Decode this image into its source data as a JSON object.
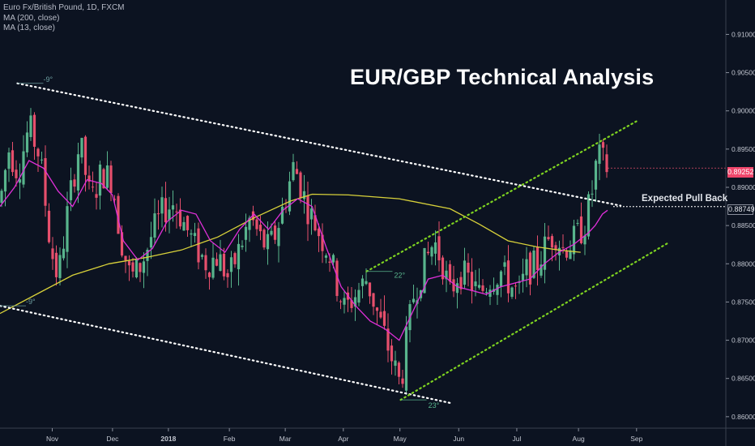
{
  "legend": {
    "symbol": "Euro Fx/British Pound, 1D, FXCM",
    "ma1": "MA (200, close)",
    "ma2": "MA (13, close)"
  },
  "annotations": {
    "title": "EUR/GBP Technical Analysis",
    "pullback": "Expected Pull Back",
    "angles": [
      "-9°",
      "-9°",
      "22°",
      "23°"
    ]
  },
  "price_tags": {
    "last": "0.89252",
    "pullback_level": "0.88749"
  },
  "colors": {
    "background": "#0c1321",
    "up_candle": "#58b48c",
    "down_candle": "#e64f6c",
    "ma200": "#d8d13a",
    "ma13": "#e02fd9",
    "channel_down": "#ffffff",
    "channel_up": "#7ed321"
  },
  "chart_data": {
    "type": "candlestick",
    "title": "EUR/GBP Technical Analysis",
    "instrument": "Euro Fx/British Pound, 1D, FXCM",
    "x_ticks": [
      "Nov",
      "Dec",
      "2018",
      "Feb",
      "Mar",
      "Apr",
      "May",
      "Jun",
      "Jul",
      "Aug",
      "Sep"
    ],
    "y_ticks": [
      "0.91000",
      "0.90500",
      "0.90000",
      "0.89500",
      "0.89000",
      "0.88500",
      "0.88000",
      "0.87500",
      "0.87000",
      "0.86500",
      "0.86000"
    ],
    "ylim": [
      0.8585,
      0.9145
    ],
    "ticks_x_pos": [
      0.072,
      0.155,
      0.232,
      0.316,
      0.393,
      0.473,
      0.551,
      0.632,
      0.712,
      0.797,
      0.877
    ],
    "last_price": 0.89252,
    "pullback_level": 0.88749,
    "series": [
      {
        "name": "MA (200, close)",
        "points": [
          [
            0.0,
            0.8735
          ],
          [
            0.05,
            0.876
          ],
          [
            0.1,
            0.8785
          ],
          [
            0.15,
            0.88
          ],
          [
            0.2,
            0.8808
          ],
          [
            0.25,
            0.8818
          ],
          [
            0.3,
            0.8835
          ],
          [
            0.35,
            0.886
          ],
          [
            0.4,
            0.8882
          ],
          [
            0.43,
            0.8891
          ],
          [
            0.48,
            0.889
          ],
          [
            0.55,
            0.8885
          ],
          [
            0.62,
            0.8872
          ],
          [
            0.66,
            0.8852
          ],
          [
            0.7,
            0.883
          ],
          [
            0.74,
            0.8822
          ],
          [
            0.77,
            0.8818
          ],
          [
            0.8,
            0.8815
          ]
        ]
      },
      {
        "name": "MA (13, close)",
        "points": [
          [
            0.0,
            0.8875
          ],
          [
            0.02,
            0.89
          ],
          [
            0.04,
            0.8935
          ],
          [
            0.06,
            0.8925
          ],
          [
            0.08,
            0.8895
          ],
          [
            0.1,
            0.8875
          ],
          [
            0.12,
            0.891
          ],
          [
            0.14,
            0.8905
          ],
          [
            0.155,
            0.889
          ],
          [
            0.17,
            0.883
          ],
          [
            0.19,
            0.8805
          ],
          [
            0.21,
            0.882
          ],
          [
            0.23,
            0.8855
          ],
          [
            0.25,
            0.887
          ],
          [
            0.27,
            0.8865
          ],
          [
            0.29,
            0.883
          ],
          [
            0.31,
            0.8815
          ],
          [
            0.33,
            0.8845
          ],
          [
            0.35,
            0.8865
          ],
          [
            0.37,
            0.8845
          ],
          [
            0.39,
            0.887
          ],
          [
            0.41,
            0.8885
          ],
          [
            0.43,
            0.8875
          ],
          [
            0.45,
            0.882
          ],
          [
            0.47,
            0.877
          ],
          [
            0.49,
            0.8745
          ],
          [
            0.51,
            0.8725
          ],
          [
            0.53,
            0.8715
          ],
          [
            0.55,
            0.87
          ],
          [
            0.57,
            0.874
          ],
          [
            0.59,
            0.878
          ],
          [
            0.61,
            0.8785
          ],
          [
            0.63,
            0.877
          ],
          [
            0.65,
            0.8765
          ],
          [
            0.67,
            0.876
          ],
          [
            0.69,
            0.877
          ],
          [
            0.71,
            0.8775
          ],
          [
            0.73,
            0.878
          ],
          [
            0.75,
            0.88
          ],
          [
            0.77,
            0.8815
          ],
          [
            0.79,
            0.8825
          ],
          [
            0.81,
            0.884
          ],
          [
            0.82,
            0.885
          ],
          [
            0.83,
            0.8865
          ],
          [
            0.837,
            0.887
          ]
        ]
      }
    ],
    "trendlines": [
      {
        "name": "descending-upper",
        "style": "dotted-white",
        "points": [
          [
            0.024,
            0.9036
          ],
          [
            0.855,
            0.8876
          ]
        ]
      },
      {
        "name": "descending-lower",
        "style": "dotted-white",
        "points": [
          [
            0.0,
            0.8745
          ],
          [
            0.62,
            0.8618
          ]
        ]
      },
      {
        "name": "ascending-upper",
        "style": "dotted-green",
        "points": [
          [
            0.505,
            0.879
          ],
          [
            0.88,
            0.8988
          ]
        ]
      },
      {
        "name": "ascending-lower",
        "style": "dotted-green",
        "points": [
          [
            0.552,
            0.8622
          ],
          [
            0.92,
            0.8827
          ]
        ]
      }
    ],
    "candles_close_path": [
      [
        0.0,
        0.888
      ],
      [
        0.012,
        0.895
      ],
      [
        0.025,
        0.892
      ],
      [
        0.04,
        0.898
      ],
      [
        0.055,
        0.894
      ],
      [
        0.07,
        0.882
      ],
      [
        0.08,
        0.878
      ],
      [
        0.095,
        0.888
      ],
      [
        0.11,
        0.896
      ],
      [
        0.125,
        0.888
      ],
      [
        0.14,
        0.892
      ],
      [
        0.155,
        0.891
      ],
      [
        0.165,
        0.884
      ],
      [
        0.18,
        0.878
      ],
      [
        0.195,
        0.88
      ],
      [
        0.21,
        0.884
      ],
      [
        0.225,
        0.887
      ],
      [
        0.24,
        0.888
      ],
      [
        0.255,
        0.885
      ],
      [
        0.27,
        0.882
      ],
      [
        0.285,
        0.88
      ],
      [
        0.3,
        0.881
      ],
      [
        0.315,
        0.878
      ],
      [
        0.33,
        0.882
      ],
      [
        0.345,
        0.886
      ],
      [
        0.36,
        0.883
      ],
      [
        0.37,
        0.882
      ],
      [
        0.38,
        0.884
      ],
      [
        0.392,
        0.888
      ],
      [
        0.405,
        0.893
      ],
      [
        0.415,
        0.89
      ],
      [
        0.425,
        0.887
      ],
      [
        0.44,
        0.884
      ],
      [
        0.455,
        0.881
      ],
      [
        0.465,
        0.877
      ],
      [
        0.475,
        0.874
      ],
      [
        0.49,
        0.876
      ],
      [
        0.505,
        0.878
      ],
      [
        0.515,
        0.875
      ],
      [
        0.525,
        0.872
      ],
      [
        0.535,
        0.869
      ],
      [
        0.545,
        0.866
      ],
      [
        0.552,
        0.864
      ],
      [
        0.56,
        0.87
      ],
      [
        0.57,
        0.876
      ],
      [
        0.585,
        0.88
      ],
      [
        0.598,
        0.883
      ],
      [
        0.61,
        0.88
      ],
      [
        0.62,
        0.876
      ],
      [
        0.632,
        0.879
      ],
      [
        0.645,
        0.878
      ],
      [
        0.66,
        0.876
      ],
      [
        0.675,
        0.878
      ],
      [
        0.69,
        0.879
      ],
      [
        0.705,
        0.877
      ],
      [
        0.715,
        0.876
      ],
      [
        0.725,
        0.879
      ],
      [
        0.74,
        0.88
      ],
      [
        0.755,
        0.883
      ],
      [
        0.765,
        0.884
      ],
      [
        0.775,
        0.882
      ],
      [
        0.79,
        0.883
      ],
      [
        0.805,
        0.885
      ],
      [
        0.815,
        0.889
      ],
      [
        0.823,
        0.894
      ],
      [
        0.83,
        0.8935
      ],
      [
        0.837,
        0.8925
      ]
    ]
  }
}
